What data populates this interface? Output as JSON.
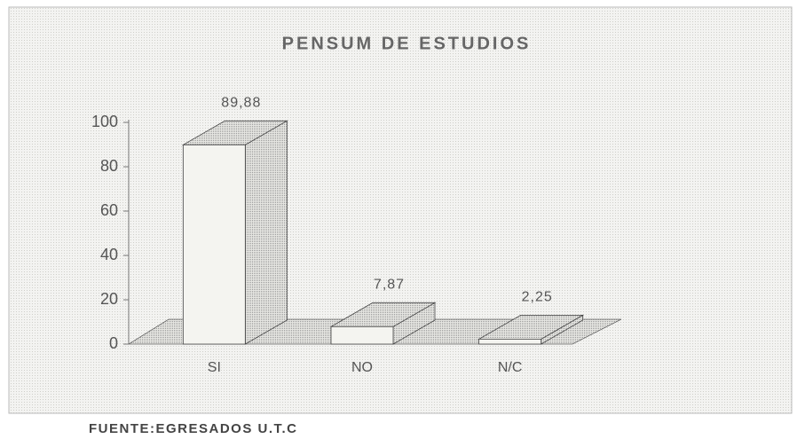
{
  "chart_data": {
    "type": "bar3d",
    "title": "PENSUM DE ESTUDIOS",
    "categories": [
      "SI",
      "NO",
      "N/C"
    ],
    "values": [
      89.88,
      7.87,
      2.25
    ],
    "value_labels": [
      "89,88",
      "7,87",
      "2,25"
    ],
    "color": "#f4f4f0",
    "ylim": [
      0,
      100
    ],
    "yticks": [
      0,
      20,
      40,
      60,
      80,
      100
    ],
    "source": "FUENTE:EGRESADOS U.T.C"
  }
}
